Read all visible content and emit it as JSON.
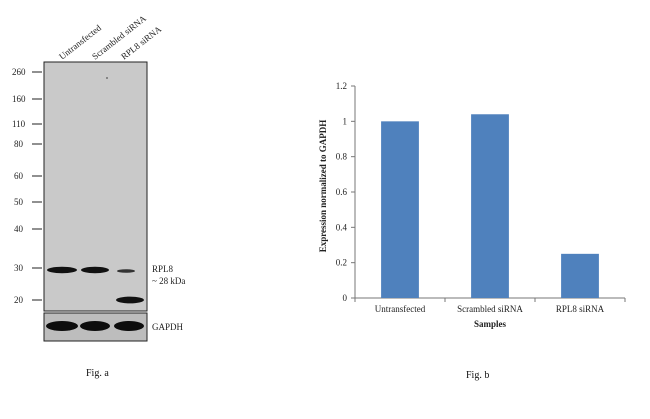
{
  "blot": {
    "lane_labels": [
      "Untransfected",
      "Scrambled siRNA",
      "RPL8 siRNA"
    ],
    "mw_markers": [
      "260",
      "160",
      "110",
      "80",
      "60",
      "50",
      "40",
      "30",
      "20"
    ],
    "target_label": "RPL8",
    "target_size": "~ 28 kDa",
    "loading_label": "GAPDH",
    "caption": "Fig. a",
    "colors": {
      "membrane": "#c9c9c9",
      "band": "#111111",
      "loading_bg": "#bdbdbd"
    }
  },
  "chart_data": {
    "type": "bar",
    "categories": [
      "Untransfected",
      "Scrambled siRNA",
      "RPL8 siRNA"
    ],
    "values": [
      1.0,
      1.04,
      0.25
    ],
    "xlabel": "Samples",
    "ylabel": "Expression  normalized to GAPDH",
    "ylim": [
      0,
      1.2
    ],
    "yticks": [
      "0",
      "0.2",
      "0.4",
      "0.6",
      "0.8",
      "1",
      "1.2"
    ],
    "grid": false,
    "bar_color": "#4f81bd",
    "caption": "Fig. b"
  }
}
